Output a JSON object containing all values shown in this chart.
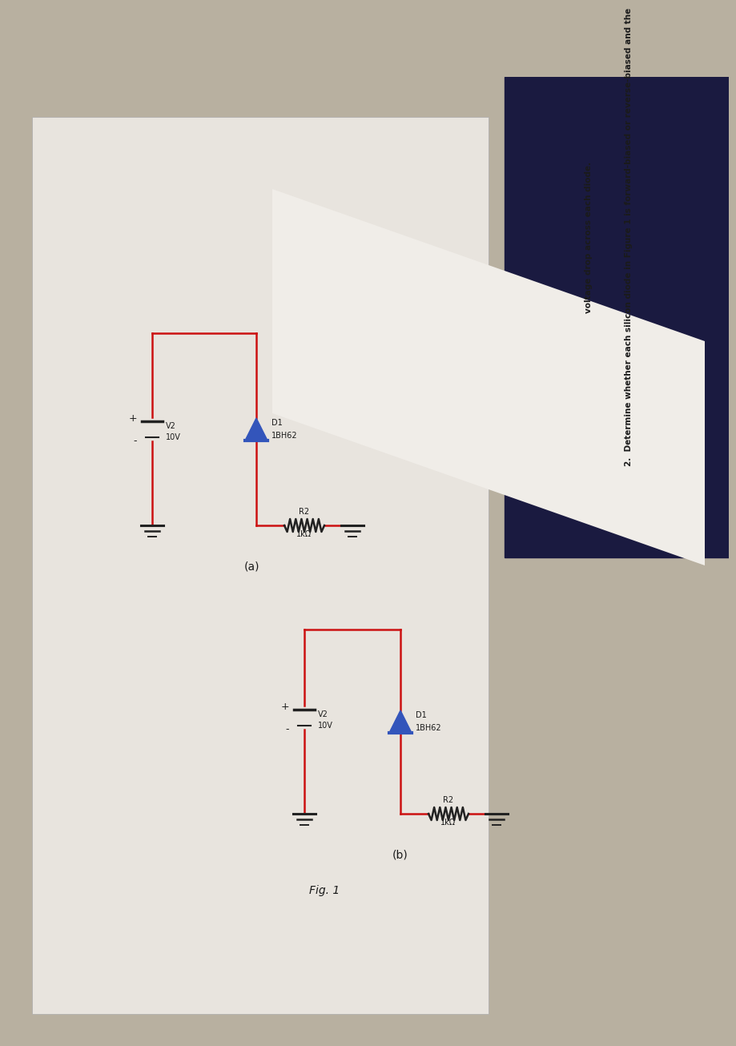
{
  "bg_color": "#b8b0a0",
  "paper_main_color": "#e8e4de",
  "paper_question_color": "#f0ede8",
  "dark_navy": "#1a1a40",
  "circuit_color": "#cc1111",
  "diode_color": "#3355bb",
  "text_color": "#1a1a1a",
  "fig_label": "Fig. 1",
  "circuit_a_label": "(a)",
  "circuit_b_label": "(b)",
  "question_line1": "2.  Determine whether each silicon diode in Figure 1 is forward-biased or reverse-biased and the",
  "question_line2": "voltage drop across each diode.",
  "v2_label": "V2",
  "v2_value": "10V",
  "d1_label": "D1",
  "d1_type": "1BH62",
  "r2_label": "R2",
  "r2_value": "1kΩ"
}
